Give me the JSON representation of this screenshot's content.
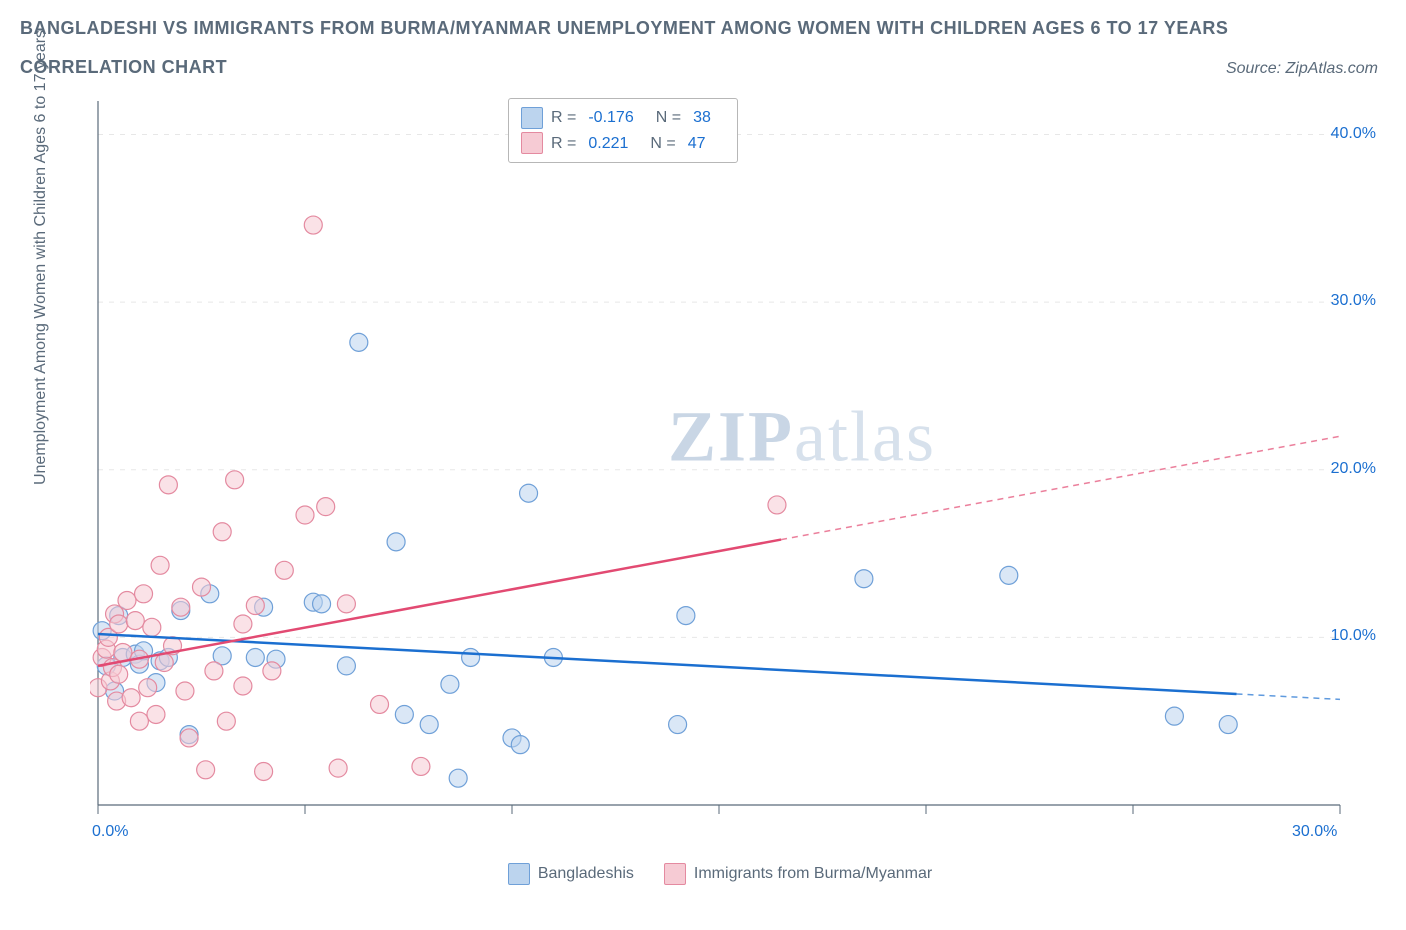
{
  "title_line1": "BANGLADESHI VS IMMIGRANTS FROM BURMA/MYANMAR UNEMPLOYMENT AMONG WOMEN WITH CHILDREN AGES 6 TO 17 YEARS",
  "title_line2": "CORRELATION CHART",
  "source": "Source: ZipAtlas.com",
  "ylabel": "Unemployment Among Women with Children Ages 6 to 17 years",
  "watermark_a": "ZIP",
  "watermark_b": "atlas",
  "chart": {
    "type": "scatter",
    "background_color": "#ffffff",
    "grid_color": "#e7e7e7",
    "axis_color": "#5a6a7a",
    "tick_label_color": "#1b6fd0",
    "xlim": [
      0,
      30
    ],
    "ylim": [
      0,
      42
    ],
    "xticks": [
      0,
      5,
      10,
      15,
      20,
      25,
      30
    ],
    "xtick_labels": [
      "0.0%",
      "",
      "",
      "",
      "",
      "",
      "30.0%"
    ],
    "yticks": [
      10,
      20,
      30,
      40
    ],
    "ytick_labels": [
      "10.0%",
      "20.0%",
      "30.0%",
      "40.0%"
    ],
    "marker_radius": 9,
    "marker_opacity": 0.55,
    "line_width": 2.5,
    "dash_pattern": "6,5",
    "series": [
      {
        "key": "bangladeshis",
        "label": "Bangladeshis",
        "color_fill": "#bcd4ee",
        "color_stroke": "#6fa0d8",
        "line_color": "#1b6fd0",
        "R_label": "R =",
        "R": "-0.176",
        "N_label": "N =",
        "N": "38",
        "trend": {
          "x1": 0,
          "y1": 10.2,
          "x2": 30,
          "y2": 6.3,
          "solid_until_x": 27.5
        },
        "points": [
          [
            0.1,
            10.4
          ],
          [
            0.2,
            8.3
          ],
          [
            0.4,
            6.8
          ],
          [
            0.5,
            11.3
          ],
          [
            0.6,
            8.8
          ],
          [
            0.9,
            9.0
          ],
          [
            1.0,
            8.4
          ],
          [
            1.1,
            9.2
          ],
          [
            1.4,
            7.3
          ],
          [
            1.5,
            8.6
          ],
          [
            1.7,
            8.8
          ],
          [
            2.0,
            11.6
          ],
          [
            2.2,
            4.2
          ],
          [
            2.7,
            12.6
          ],
          [
            3.0,
            8.9
          ],
          [
            3.8,
            8.8
          ],
          [
            4.0,
            11.8
          ],
          [
            4.3,
            8.7
          ],
          [
            5.2,
            12.1
          ],
          [
            5.4,
            12.0
          ],
          [
            6.0,
            8.3
          ],
          [
            6.3,
            27.6
          ],
          [
            7.2,
            15.7
          ],
          [
            7.4,
            5.4
          ],
          [
            8.0,
            4.8
          ],
          [
            8.5,
            7.2
          ],
          [
            8.7,
            1.6
          ],
          [
            9.0,
            8.8
          ],
          [
            10.0,
            4.0
          ],
          [
            10.2,
            3.6
          ],
          [
            10.4,
            18.6
          ],
          [
            11.0,
            8.8
          ],
          [
            14.0,
            4.8
          ],
          [
            14.2,
            11.3
          ],
          [
            18.5,
            13.5
          ],
          [
            22.0,
            13.7
          ],
          [
            26.0,
            5.3
          ],
          [
            27.3,
            4.8
          ]
        ]
      },
      {
        "key": "burma",
        "label": "Immigrants from Burma/Myanmar",
        "color_fill": "#f6cbd4",
        "color_stroke": "#e48aa0",
        "line_color": "#e24a72",
        "R_label": "R =",
        "R": "0.221",
        "N_label": "N =",
        "N": "47",
        "trend": {
          "x1": 0,
          "y1": 8.3,
          "x2": 30,
          "y2": 22.0,
          "solid_until_x": 16.5
        },
        "points": [
          [
            0.0,
            7.0
          ],
          [
            0.1,
            8.8
          ],
          [
            0.2,
            9.3
          ],
          [
            0.25,
            10.0
          ],
          [
            0.3,
            7.4
          ],
          [
            0.35,
            8.2
          ],
          [
            0.4,
            11.4
          ],
          [
            0.45,
            6.2
          ],
          [
            0.5,
            7.8
          ],
          [
            0.5,
            10.8
          ],
          [
            0.6,
            9.1
          ],
          [
            0.7,
            12.2
          ],
          [
            0.8,
            6.4
          ],
          [
            0.9,
            11.0
          ],
          [
            1.0,
            8.7
          ],
          [
            1.0,
            5.0
          ],
          [
            1.1,
            12.6
          ],
          [
            1.2,
            7.0
          ],
          [
            1.3,
            10.6
          ],
          [
            1.4,
            5.4
          ],
          [
            1.5,
            14.3
          ],
          [
            1.6,
            8.5
          ],
          [
            1.7,
            19.1
          ],
          [
            1.8,
            9.5
          ],
          [
            2.0,
            11.8
          ],
          [
            2.1,
            6.8
          ],
          [
            2.2,
            4.0
          ],
          [
            2.5,
            13.0
          ],
          [
            2.6,
            2.1
          ],
          [
            2.8,
            8.0
          ],
          [
            3.0,
            16.3
          ],
          [
            3.1,
            5.0
          ],
          [
            3.3,
            19.4
          ],
          [
            3.5,
            7.1
          ],
          [
            3.5,
            10.8
          ],
          [
            3.8,
            11.9
          ],
          [
            4.0,
            2.0
          ],
          [
            4.2,
            8.0
          ],
          [
            4.5,
            14.0
          ],
          [
            5.0,
            17.3
          ],
          [
            5.2,
            34.6
          ],
          [
            5.5,
            17.8
          ],
          [
            5.8,
            2.2
          ],
          [
            6.0,
            12.0
          ],
          [
            6.8,
            6.0
          ],
          [
            7.8,
            2.3
          ],
          [
            16.4,
            17.9
          ]
        ]
      }
    ]
  }
}
